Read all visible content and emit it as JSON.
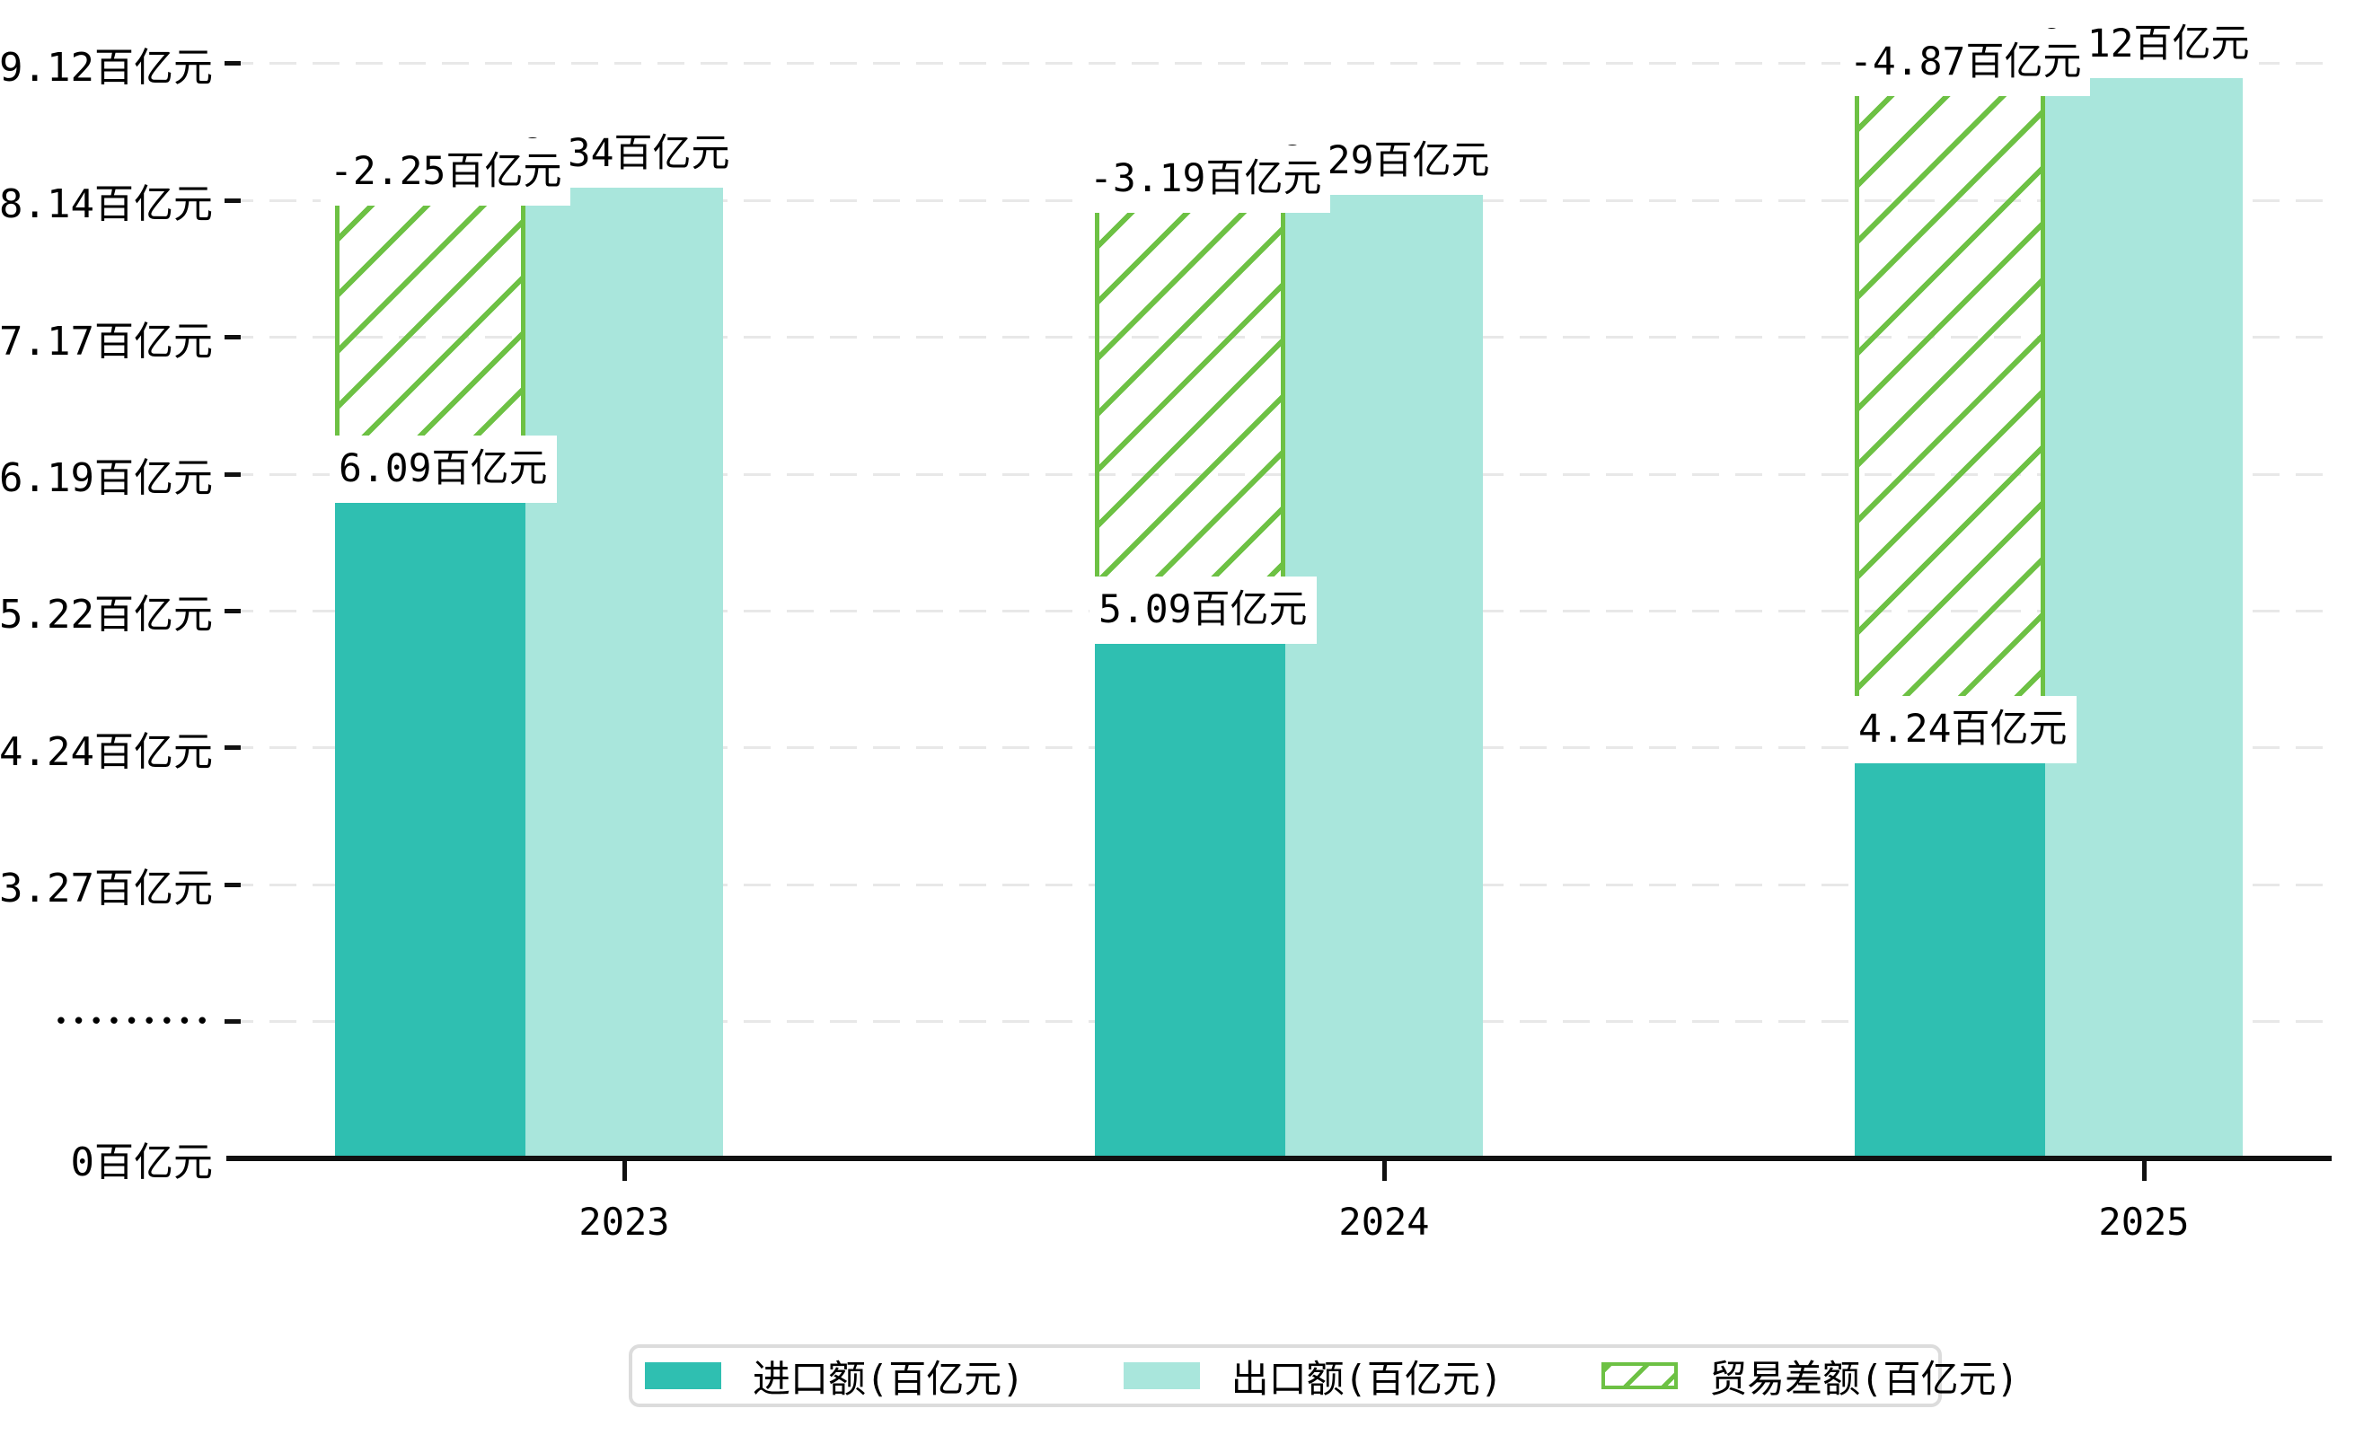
{
  "chart_data": {
    "type": "bar",
    "title": "",
    "unit": "百亿元",
    "categories": [
      "2023",
      "2024",
      "2025"
    ],
    "series": [
      {
        "name": "进口额(百亿元)",
        "role": "import",
        "color": "#2FBFB1",
        "values": [
          6.09,
          5.09,
          4.24
        ],
        "data_labels": [
          "6.09百亿元",
          "5.09百亿元",
          "4.24百亿元"
        ]
      },
      {
        "name": "出口额(百亿元)",
        "role": "export",
        "color": "#A9E6DC",
        "values": [
          8.34,
          8.29,
          9.12
        ],
        "data_labels": [
          "8.34百亿元",
          "8.29百亿元",
          "9.12百亿元"
        ]
      },
      {
        "name": "贸易差额(百亿元)",
        "role": "trade-balance",
        "color": "#6DC144",
        "pattern": "diagonal-hatch",
        "values": [
          -2.25,
          -3.19,
          -4.87
        ],
        "data_labels": [
          "-2.25百亿元",
          "-3.19百亿元",
          "-4.87百亿元"
        ],
        "spans_from_import_top_to_export_top": true
      }
    ],
    "y_axis": {
      "unit": "百亿元",
      "broken_axis": true,
      "ticks": [
        {
          "label": "0百亿元",
          "value": 0
        },
        {
          "label": "•••••••••",
          "value": null,
          "dotted": true
        },
        {
          "label": "3.27百亿元",
          "value": 3.27
        },
        {
          "label": "4.24百亿元",
          "value": 4.24
        },
        {
          "label": "5.22百亿元",
          "value": 5.22
        },
        {
          "label": "6.19百亿元",
          "value": 6.19
        },
        {
          "label": "7.17百亿元",
          "value": 7.17
        },
        {
          "label": "8.14百亿元",
          "value": 8.14
        },
        {
          "label": "9.12百亿元",
          "value": 9.12
        }
      ]
    },
    "x_axis": {
      "labels": [
        "2023",
        "2024",
        "2025"
      ]
    },
    "legend": {
      "position": "bottom",
      "items": [
        {
          "label": "进口额(百亿元)",
          "swatch": "solid",
          "color": "#2FBFB1"
        },
        {
          "label": "出口额(百亿元)",
          "swatch": "solid",
          "color": "#A9E6DC"
        },
        {
          "label": "贸易差额(百亿元)",
          "swatch": "hatched",
          "color": "#6DC144"
        }
      ]
    },
    "gridlines": "dashed-horizontal",
    "colors": {
      "background": "#FFFFFF",
      "axis": "#111111",
      "gridline": "#E8E8E8",
      "legend_border": "#DCDCDC",
      "label_background": "#FFFFFF",
      "text": "#000000"
    }
  }
}
